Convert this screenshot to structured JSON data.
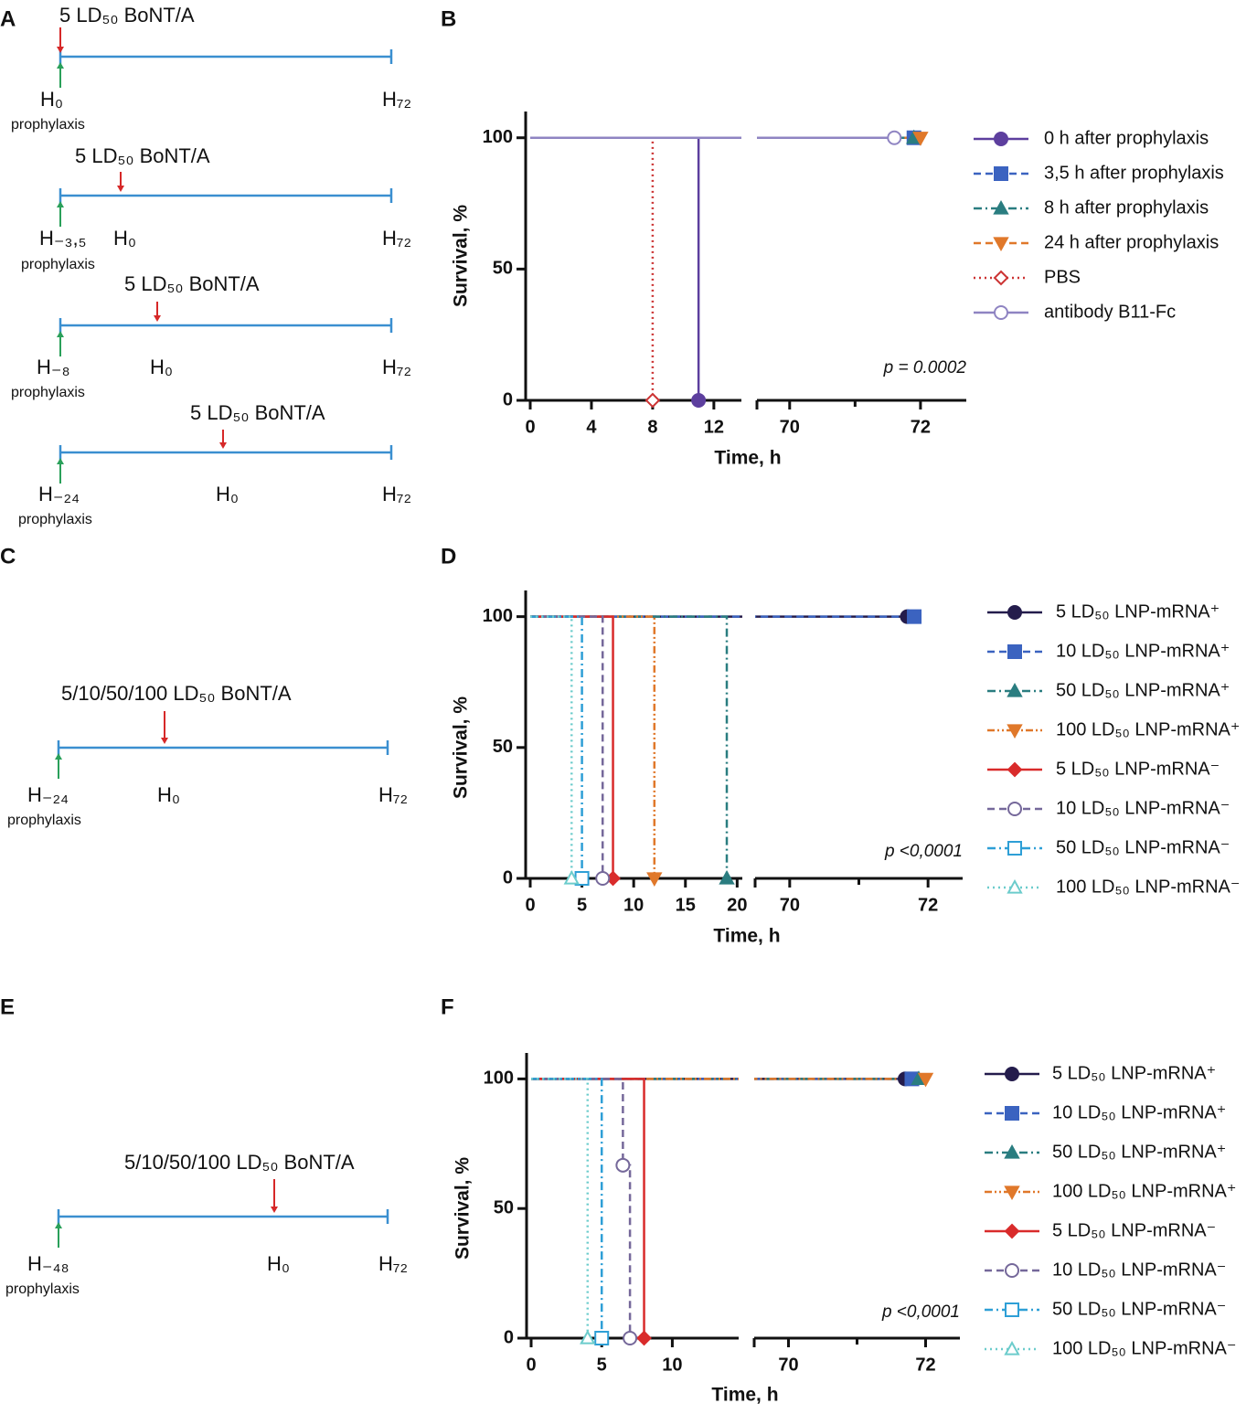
{
  "timeline_panels": [
    {
      "label": "A",
      "timelines": [
        {
          "dose": "5 LD₅₀ BoNT/A",
          "start": "H₀",
          "end": "H₇₂",
          "note": "prophylaxis"
        },
        {
          "dose": "5 LD₅₀ BoNT/A",
          "start": "H₋₃,₅",
          "zero": "H₀",
          "end": "H₇₂",
          "note": "prophylaxis"
        },
        {
          "dose": "5 LD₅₀ BoNT/A",
          "start": "H₋₈",
          "zero": "H₀",
          "end": "H₇₂",
          "note": "prophylaxis"
        },
        {
          "dose": "5 LD₅₀ BoNT/A",
          "start": "H₋₂₄",
          "zero": "H₀",
          "end": "H₇₂",
          "note": "prophylaxis"
        }
      ]
    },
    {
      "label": "C",
      "timelines": [
        {
          "dose": "5/10/50/100 LD₅₀ BoNT/A",
          "start": "H₋₂₄",
          "zero": "H₀",
          "end": "H₇₂",
          "note": "prophylaxis"
        }
      ]
    },
    {
      "label": "E",
      "timelines": [
        {
          "dose": "5/10/50/100 LD₅₀ BoNT/A",
          "start": "H₋₄₈",
          "zero": "H₀",
          "end": "H₇₂",
          "note": "prophylaxis"
        }
      ]
    }
  ],
  "chart_data": [
    {
      "type": "survival",
      "panel": "B",
      "x_label": "Time, h",
      "y_label": "Survival, %",
      "annotation": "p = 0.0002",
      "xlim": [
        [
          0,
          13.8
        ],
        [
          69.5,
          72.7
        ]
      ],
      "xticks": [
        [
          0,
          4,
          8,
          12
        ],
        [
          70,
          72
        ]
      ],
      "xminorticks": [
        [],
        [
          71
        ]
      ],
      "ylim": [
        0,
        110
      ],
      "yticks": [
        0,
        50,
        100
      ],
      "series": [
        {
          "name": "0 h after prophylaxis",
          "color": "#5d3f9e",
          "dash": "solid",
          "marker": "circle",
          "filled": true,
          "x": [
            0,
            11
          ],
          "values": [
            100,
            0
          ]
        },
        {
          "name": "3,5 h after prophylaxis",
          "color": "#3b63c0",
          "dash": "dash",
          "marker": "square",
          "filled": true,
          "x": [
            0,
            71.9
          ],
          "values": [
            100,
            100
          ]
        },
        {
          "name": "8 h after prophylaxis",
          "color": "#2a7d80",
          "dash": "dashdot",
          "marker": "triangle",
          "filled": true,
          "x": [
            0,
            71.9
          ],
          "values": [
            100,
            100
          ]
        },
        {
          "name": "24 h after prophylaxis",
          "color": "#e0782a",
          "dash": "dash",
          "marker": "triangle-down",
          "filled": true,
          "x": [
            0,
            72
          ],
          "values": [
            100,
            100
          ]
        },
        {
          "name": "PBS",
          "color": "#cc3333",
          "dash": "dot",
          "marker": "diamond",
          "filled": false,
          "x": [
            0,
            8
          ],
          "values": [
            100,
            0
          ]
        },
        {
          "name": "antibody B11-Fc",
          "color": "#8f84c2",
          "dash": "solid",
          "marker": "circle",
          "filled": false,
          "x": [
            0,
            71.6
          ],
          "values": [
            100,
            100
          ]
        }
      ]
    },
    {
      "type": "survival",
      "panel": "D",
      "x_label": "Time, h",
      "y_label": "Survival, %",
      "annotation": "p <0,0001",
      "xlim": [
        [
          0,
          20.5
        ],
        [
          69.5,
          72.5
        ]
      ],
      "xticks": [
        [
          0,
          5,
          10,
          15,
          20
        ],
        [
          70,
          72
        ]
      ],
      "xminorticks": [
        [],
        [
          71
        ]
      ],
      "ylim": [
        0,
        110
      ],
      "yticks": [
        0,
        50,
        100
      ],
      "series": [
        {
          "name": "5 LD₅₀ LNP-mRNA⁺",
          "color": "#241c4c",
          "dash": "solid",
          "marker": "circle",
          "filled": true,
          "x": [
            0,
            71.7
          ],
          "values": [
            100,
            100
          ]
        },
        {
          "name": "10 LD₅₀ LNP-mRNA⁺",
          "color": "#3b63c0",
          "dash": "dash",
          "marker": "square",
          "filled": true,
          "x": [
            0,
            71.8
          ],
          "values": [
            100,
            100
          ]
        },
        {
          "name": "50 LD₅₀ LNP-mRNA⁺",
          "color": "#2a7d80",
          "dash": "dashdot",
          "marker": "triangle",
          "filled": true,
          "x": [
            0,
            19
          ],
          "values": [
            100,
            0
          ]
        },
        {
          "name": "100 LD₅₀ LNP-mRNA⁺",
          "color": "#e0782a",
          "dash": "dashdotdot",
          "marker": "triangle-down",
          "filled": true,
          "x": [
            0,
            12
          ],
          "values": [
            100,
            0
          ]
        },
        {
          "name": "5 LD₅₀ LNP-mRNA⁻",
          "color": "#d92b2b",
          "dash": "solid",
          "marker": "diamond",
          "filled": true,
          "x": [
            0,
            8
          ],
          "values": [
            100,
            0
          ]
        },
        {
          "name": "10 LD₅₀ LNP-mRNA⁻",
          "color": "#75689a",
          "dash": "dash",
          "marker": "circle",
          "filled": false,
          "x": [
            0,
            7
          ],
          "values": [
            100,
            0
          ]
        },
        {
          "name": "50 LD₅₀ LNP-mRNA⁻",
          "color": "#2e9fd6",
          "dash": "dashdot",
          "marker": "square",
          "filled": false,
          "x": [
            0,
            5
          ],
          "values": [
            100,
            0
          ]
        },
        {
          "name": "100 LD₅₀ LNP-mRNA⁻",
          "color": "#6ccccc",
          "dash": "dot",
          "marker": "triangle",
          "filled": false,
          "x": [
            0,
            4
          ],
          "values": [
            100,
            0
          ]
        }
      ]
    },
    {
      "type": "survival",
      "panel": "F",
      "x_label": "Time, h",
      "y_label": "Survival, %",
      "annotation": "p <0,0001",
      "xlim": [
        [
          0,
          14.7
        ],
        [
          69.5,
          72.5
        ]
      ],
      "xticks": [
        [
          0,
          5,
          10
        ],
        [
          70,
          72
        ]
      ],
      "xminorticks": [
        [],
        [
          71
        ]
      ],
      "ylim": [
        0,
        110
      ],
      "yticks": [
        0,
        50,
        100
      ],
      "series": [
        {
          "name": "5 LD₅₀ LNP-mRNA⁺",
          "color": "#241c4c",
          "dash": "solid",
          "marker": "circle",
          "filled": true,
          "x": [
            0,
            71.7
          ],
          "values": [
            100,
            100
          ]
        },
        {
          "name": "10 LD₅₀ LNP-mRNA⁺",
          "color": "#3b63c0",
          "dash": "dash",
          "marker": "square",
          "filled": true,
          "x": [
            0,
            71.8
          ],
          "values": [
            100,
            100
          ]
        },
        {
          "name": "50 LD₅₀ LNP-mRNA⁺",
          "color": "#2a7d80",
          "dash": "dashdot",
          "marker": "triangle",
          "filled": true,
          "x": [
            0,
            71.9
          ],
          "values": [
            100,
            100
          ]
        },
        {
          "name": "100 LD₅₀ LNP-mRNA⁺",
          "color": "#e0782a",
          "dash": "dashdotdot",
          "marker": "triangle-down",
          "filled": true,
          "x": [
            0,
            72
          ],
          "values": [
            100,
            100
          ]
        },
        {
          "name": "5 LD₅₀ LNP-mRNA⁻",
          "color": "#d92b2b",
          "dash": "solid",
          "marker": "diamond",
          "filled": true,
          "x": [
            0,
            8
          ],
          "values": [
            100,
            0
          ]
        },
        {
          "name": "10 LD₅₀ LNP-mRNA⁻",
          "color": "#75689a",
          "dash": "dash",
          "marker": "circle",
          "filled": false,
          "x": [
            0,
            6.5,
            7
          ],
          "values": [
            100,
            66.7,
            0
          ]
        },
        {
          "name": "50 LD₅₀ LNP-mRNA⁻",
          "color": "#2e9fd6",
          "dash": "dashdot",
          "marker": "square",
          "filled": false,
          "x": [
            0,
            5
          ],
          "values": [
            100,
            0
          ]
        },
        {
          "name": "100 LD₅₀ LNP-mRNA⁻",
          "color": "#6ccccc",
          "dash": "dot",
          "marker": "triangle",
          "filled": false,
          "x": [
            0,
            4
          ],
          "values": [
            100,
            0
          ]
        }
      ]
    }
  ]
}
